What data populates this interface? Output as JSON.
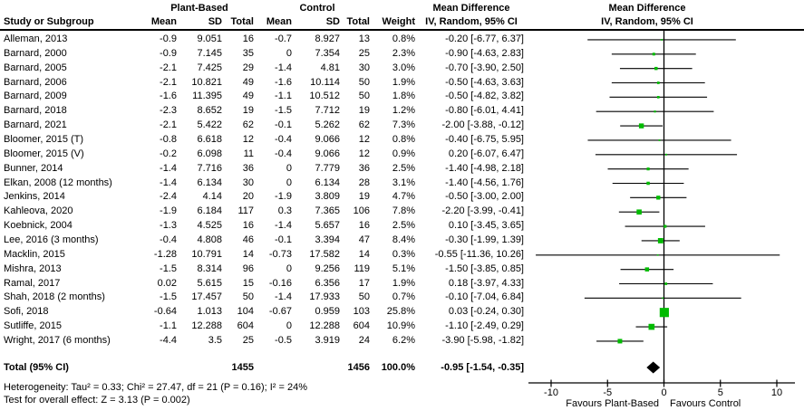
{
  "header": {
    "study_col": "Study or Subgroup",
    "group_experimental": "Plant-Based",
    "group_control": "Control",
    "mean": "Mean",
    "sd": "SD",
    "total": "Total",
    "weight": "Weight",
    "md_col_title": "Mean Difference",
    "md_col_sub": "IV, Random, 95% CI",
    "plot_col_title": "Mean Difference",
    "plot_col_sub": "IV, Random, 95% CI"
  },
  "colors": {
    "square": "#00bb00",
    "diamond": "#000000",
    "line": "#000000"
  },
  "chart_data": {
    "type": "forest",
    "effect_measure": "Mean Difference (IV, Random, 95% CI)",
    "axis": {
      "ticks": [
        -10,
        -5,
        0,
        5,
        10
      ],
      "tick_labels": [
        "-10",
        "-5",
        "0",
        "5",
        "10"
      ],
      "favours_left": "Favours Plant-Based",
      "favours_right": "Favours Control"
    },
    "studies": [
      {
        "name": "Alleman, 2013",
        "pb_mean": -0.9,
        "pb_sd": 9.051,
        "pb_total": 16,
        "c_mean": -0.7,
        "c_sd": 8.927,
        "c_total": 13,
        "weight": 0.8,
        "est": -0.2,
        "lo": -6.77,
        "hi": 6.37,
        "ci_label": "-0.20 [-6.77, 6.37]"
      },
      {
        "name": "Barnard, 2000",
        "pb_mean": -0.9,
        "pb_sd": 7.145,
        "pb_total": 35,
        "c_mean": 0,
        "c_sd": 7.354,
        "c_total": 25,
        "weight": 2.3,
        "est": -0.9,
        "lo": -4.63,
        "hi": 2.83,
        "ci_label": "-0.90 [-4.63, 2.83]"
      },
      {
        "name": "Barnard, 2005",
        "pb_mean": -2.1,
        "pb_sd": 7.425,
        "pb_total": 29,
        "c_mean": -1.4,
        "c_sd": 4.81,
        "c_total": 30,
        "weight": 3.0,
        "est": -0.7,
        "lo": -3.9,
        "hi": 2.5,
        "ci_label": "-0.70 [-3.90, 2.50]"
      },
      {
        "name": "Barnard, 2006",
        "pb_mean": -2.1,
        "pb_sd": 10.821,
        "pb_total": 49,
        "c_mean": -1.6,
        "c_sd": 10.114,
        "c_total": 50,
        "weight": 1.9,
        "est": -0.5,
        "lo": -4.63,
        "hi": 3.63,
        "ci_label": "-0.50 [-4.63, 3.63]"
      },
      {
        "name": "Barnard, 2009",
        "pb_mean": -1.6,
        "pb_sd": 11.395,
        "pb_total": 49,
        "c_mean": -1.1,
        "c_sd": 10.512,
        "c_total": 50,
        "weight": 1.8,
        "est": -0.5,
        "lo": -4.82,
        "hi": 3.82,
        "ci_label": "-0.50 [-4.82, 3.82]"
      },
      {
        "name": "Barnard, 2018",
        "pb_mean": -2.3,
        "pb_sd": 8.652,
        "pb_total": 19,
        "c_mean": -1.5,
        "c_sd": 7.712,
        "c_total": 19,
        "weight": 1.2,
        "est": -0.8,
        "lo": -6.01,
        "hi": 4.41,
        "ci_label": "-0.80 [-6.01, 4.41]"
      },
      {
        "name": "Barnard, 2021",
        "pb_mean": -2.1,
        "pb_sd": 5.422,
        "pb_total": 62,
        "c_mean": -0.1,
        "c_sd": 5.262,
        "c_total": 62,
        "weight": 7.3,
        "est": -2.0,
        "lo": -3.88,
        "hi": -0.12,
        "ci_label": "-2.00 [-3.88, -0.12]"
      },
      {
        "name": "Bloomer, 2015 (T)",
        "pb_mean": -0.8,
        "pb_sd": 6.618,
        "pb_total": 12,
        "c_mean": -0.4,
        "c_sd": 9.066,
        "c_total": 12,
        "weight": 0.8,
        "est": -0.4,
        "lo": -6.75,
        "hi": 5.95,
        "ci_label": "-0.40 [-6.75, 5.95]"
      },
      {
        "name": "Bloomer, 2015 (V)",
        "pb_mean": -0.2,
        "pb_sd": 6.098,
        "pb_total": 11,
        "c_mean": -0.4,
        "c_sd": 9.066,
        "c_total": 12,
        "weight": 0.9,
        "est": 0.2,
        "lo": -6.07,
        "hi": 6.47,
        "ci_label": "0.20 [-6.07, 6.47]"
      },
      {
        "name": "Bunner, 2014",
        "pb_mean": -1.4,
        "pb_sd": 7.716,
        "pb_total": 36,
        "c_mean": 0,
        "c_sd": 7.779,
        "c_total": 36,
        "weight": 2.5,
        "est": -1.4,
        "lo": -4.98,
        "hi": 2.18,
        "ci_label": "-1.40 [-4.98, 2.18]"
      },
      {
        "name": "Elkan, 2008 (12 months)",
        "pb_mean": -1.4,
        "pb_sd": 6.134,
        "pb_total": 30,
        "c_mean": 0,
        "c_sd": 6.134,
        "c_total": 28,
        "weight": 3.1,
        "est": -1.4,
        "lo": -4.56,
        "hi": 1.76,
        "ci_label": "-1.40 [-4.56, 1.76]"
      },
      {
        "name": "Jenkins, 2014",
        "pb_mean": -2.4,
        "pb_sd": 4.14,
        "pb_total": 20,
        "c_mean": -1.9,
        "c_sd": 3.809,
        "c_total": 19,
        "weight": 4.7,
        "est": -0.5,
        "lo": -3.0,
        "hi": 2.0,
        "ci_label": "-0.50 [-3.00, 2.00]"
      },
      {
        "name": "Kahleova, 2020",
        "pb_mean": -1.9,
        "pb_sd": 6.184,
        "pb_total": 117,
        "c_mean": 0.3,
        "c_sd": 7.365,
        "c_total": 106,
        "weight": 7.8,
        "est": -2.2,
        "lo": -3.99,
        "hi": -0.41,
        "ci_label": "-2.20 [-3.99, -0.41]"
      },
      {
        "name": "Koebnick, 2004",
        "pb_mean": -1.3,
        "pb_sd": 4.525,
        "pb_total": 16,
        "c_mean": -1.4,
        "c_sd": 5.657,
        "c_total": 16,
        "weight": 2.5,
        "est": 0.1,
        "lo": -3.45,
        "hi": 3.65,
        "ci_label": "0.10 [-3.45, 3.65]"
      },
      {
        "name": "Lee, 2016 (3 months)",
        "pb_mean": -0.4,
        "pb_sd": 4.808,
        "pb_total": 46,
        "c_mean": -0.1,
        "c_sd": 3.394,
        "c_total": 47,
        "weight": 8.4,
        "est": -0.3,
        "lo": -1.99,
        "hi": 1.39,
        "ci_label": "-0.30 [-1.99, 1.39]"
      },
      {
        "name": "Macklin, 2015",
        "pb_mean": -1.28,
        "pb_sd": 10.791,
        "pb_total": 14,
        "c_mean": -0.73,
        "c_sd": 17.582,
        "c_total": 14,
        "weight": 0.3,
        "est": -0.55,
        "lo": -11.36,
        "hi": 10.26,
        "ci_label": "-0.55 [-11.36, 10.26]"
      },
      {
        "name": "Mishra, 2013",
        "pb_mean": -1.5,
        "pb_sd": 8.314,
        "pb_total": 96,
        "c_mean": 0,
        "c_sd": 9.256,
        "c_total": 119,
        "weight": 5.1,
        "est": -1.5,
        "lo": -3.85,
        "hi": 0.85,
        "ci_label": "-1.50 [-3.85, 0.85]"
      },
      {
        "name": "Ramal, 2017",
        "pb_mean": 0.02,
        "pb_sd": 5.615,
        "pb_total": 15,
        "c_mean": -0.16,
        "c_sd": 6.356,
        "c_total": 17,
        "weight": 1.9,
        "est": 0.18,
        "lo": -3.97,
        "hi": 4.33,
        "ci_label": "0.18 [-3.97, 4.33]"
      },
      {
        "name": "Shah, 2018 (2 months)",
        "pb_mean": -1.5,
        "pb_sd": 17.457,
        "pb_total": 50,
        "c_mean": -1.4,
        "c_sd": 17.933,
        "c_total": 50,
        "weight": 0.7,
        "est": -0.1,
        "lo": -7.04,
        "hi": 6.84,
        "ci_label": "-0.10 [-7.04, 6.84]"
      },
      {
        "name": "Sofi, 2018",
        "pb_mean": -0.64,
        "pb_sd": 1.013,
        "pb_total": 104,
        "c_mean": -0.67,
        "c_sd": 0.959,
        "c_total": 103,
        "weight": 25.8,
        "est": 0.03,
        "lo": -0.24,
        "hi": 0.3,
        "ci_label": "0.03 [-0.24, 0.30]"
      },
      {
        "name": "Sutliffe, 2015",
        "pb_mean": -1.1,
        "pb_sd": 12.288,
        "pb_total": 604,
        "c_mean": 0,
        "c_sd": 12.288,
        "c_total": 604,
        "weight": 10.9,
        "est": -1.1,
        "lo": -2.49,
        "hi": 0.29,
        "ci_label": "-1.10 [-2.49, 0.29]"
      },
      {
        "name": "Wright, 2017 (6 months)",
        "pb_mean": -4.4,
        "pb_sd": 3.5,
        "pb_total": 25,
        "c_mean": -0.5,
        "c_sd": 3.919,
        "c_total": 24,
        "weight": 6.2,
        "est": -3.9,
        "lo": -5.98,
        "hi": -1.82,
        "ci_label": "-3.90 [-5.98, -1.82]"
      }
    ],
    "total": {
      "label": "Total (95% CI)",
      "pb_total": 1455,
      "c_total": 1456,
      "weight_label": "100.0%",
      "est": -0.95,
      "lo": -1.54,
      "hi": -0.35,
      "ci_label": "-0.95 [-1.54, -0.35]"
    },
    "heterogeneity": "Heterogeneity: Tau² = 0.33; Chi² = 27.47, df = 21 (P = 0.16); I² = 24%",
    "overall_effect": "Test for overall effect: Z = 3.13 (P = 0.002)"
  }
}
